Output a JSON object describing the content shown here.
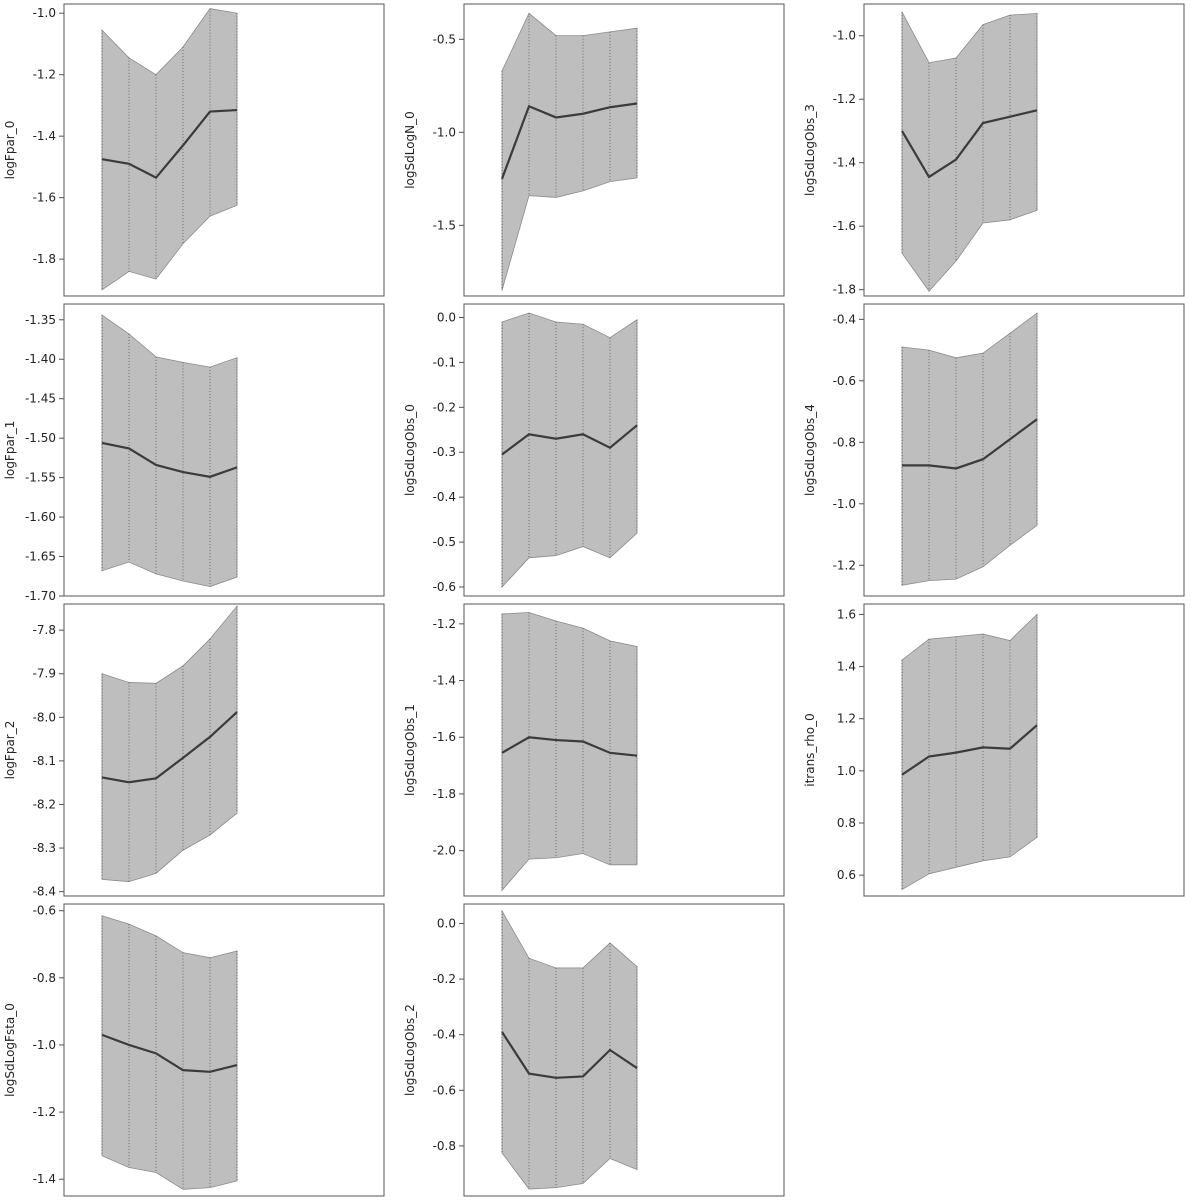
{
  "colors": {
    "band": "#bebebe",
    "band_edge": "#8c8c8c",
    "line": "#3b3b3b",
    "frame": "#555555",
    "vline": "#555555"
  },
  "chart_data": [
    {
      "type": "line",
      "ylabel": "logFpar_0",
      "ylim": [
        -1.92,
        -0.97
      ],
      "yticks": [
        -1.8,
        -1.6,
        -1.4,
        -1.2,
        -1.0
      ],
      "yticklabels": [
        "-1.8",
        "-1.6",
        "-1.4",
        "-1.2",
        "-1.0"
      ],
      "x": [
        1,
        2,
        3,
        4,
        5,
        6
      ],
      "mean": [
        -1.475,
        -1.49,
        -1.535,
        -1.43,
        -1.32,
        -1.315
      ],
      "lower": [
        -1.9,
        -1.84,
        -1.865,
        -1.75,
        -1.66,
        -1.625
      ],
      "upper": [
        -1.055,
        -1.145,
        -1.2,
        -1.11,
        -0.985,
        -1.0
      ]
    },
    {
      "type": "line",
      "ylabel": "logSdLogN_0",
      "ylim": [
        -1.88,
        -0.31
      ],
      "yticks": [
        -1.5,
        -1.0,
        -0.5
      ],
      "yticklabels": [
        "-1.5",
        "-1.0",
        "-0.5"
      ],
      "x": [
        1,
        2,
        3,
        4,
        5,
        6
      ],
      "mean": [
        -1.25,
        -0.86,
        -0.92,
        -0.9,
        -0.865,
        -0.845
      ],
      "lower": [
        -1.85,
        -1.34,
        -1.35,
        -1.315,
        -1.265,
        -1.245
      ],
      "upper": [
        -0.67,
        -0.36,
        -0.48,
        -0.48,
        -0.46,
        -0.44
      ]
    },
    {
      "type": "line",
      "ylabel": "logSdLogObs_3",
      "ylim": [
        -1.82,
        -0.9
      ],
      "yticks": [
        -1.8,
        -1.6,
        -1.4,
        -1.2,
        -1.0
      ],
      "yticklabels": [
        "-1.8",
        "-1.6",
        "-1.4",
        "-1.2",
        "-1.0"
      ],
      "x": [
        1,
        2,
        3,
        4,
        5,
        6
      ],
      "mean": [
        -1.3,
        -1.445,
        -1.39,
        -1.275,
        -1.255,
        -1.235
      ],
      "lower": [
        -1.685,
        -1.805,
        -1.71,
        -1.59,
        -1.58,
        -1.55
      ],
      "upper": [
        -0.925,
        -1.085,
        -1.07,
        -0.965,
        -0.935,
        -0.93
      ]
    },
    {
      "type": "line",
      "ylabel": "logFpar_1",
      "ylim": [
        -1.7,
        -1.33
      ],
      "yticks": [
        -1.7,
        -1.65,
        -1.6,
        -1.55,
        -1.5,
        -1.45,
        -1.4,
        -1.35
      ],
      "yticklabels": [
        "-1.70",
        "-1.65",
        "-1.60",
        "-1.55",
        "-1.50",
        "-1.45",
        "-1.40",
        "-1.35"
      ],
      "x": [
        1,
        2,
        3,
        4,
        5,
        6
      ],
      "mean": [
        -1.506,
        -1.513,
        -1.534,
        -1.543,
        -1.549,
        -1.537
      ],
      "lower": [
        -1.668,
        -1.657,
        -1.672,
        -1.681,
        -1.688,
        -1.676
      ],
      "upper": [
        -1.344,
        -1.368,
        -1.397,
        -1.404,
        -1.41,
        -1.398
      ]
    },
    {
      "type": "line",
      "ylabel": "logSdLogObs_0",
      "ylim": [
        -0.62,
        0.03
      ],
      "yticks": [
        -0.6,
        -0.5,
        -0.4,
        -0.3,
        -0.2,
        -0.1,
        0.0
      ],
      "yticklabels": [
        "-0.6",
        "-0.5",
        "-0.4",
        "-0.3",
        "-0.2",
        "-0.1",
        "0.0"
      ],
      "x": [
        1,
        2,
        3,
        4,
        5,
        6
      ],
      "mean": [
        -0.305,
        -0.26,
        -0.27,
        -0.26,
        -0.29,
        -0.24
      ],
      "lower": [
        -0.6,
        -0.535,
        -0.53,
        -0.51,
        -0.535,
        -0.48
      ],
      "upper": [
        -0.01,
        0.01,
        -0.01,
        -0.015,
        -0.045,
        -0.005
      ]
    },
    {
      "type": "line",
      "ylabel": "logSdLogObs_4",
      "ylim": [
        -1.3,
        -0.35
      ],
      "yticks": [
        -1.2,
        -1.0,
        -0.8,
        -0.6,
        -0.4
      ],
      "yticklabels": [
        "-1.2",
        "-1.0",
        "-0.8",
        "-0.6",
        "-0.4"
      ],
      "x": [
        1,
        2,
        3,
        4,
        5,
        6
      ],
      "mean": [
        -0.875,
        -0.875,
        -0.885,
        -0.855,
        -0.79,
        -0.725
      ],
      "lower": [
        -1.265,
        -1.25,
        -1.245,
        -1.205,
        -1.135,
        -1.07
      ],
      "upper": [
        -0.49,
        -0.5,
        -0.525,
        -0.51,
        -0.445,
        -0.38
      ]
    },
    {
      "type": "line",
      "ylabel": "logFpar_2",
      "ylim": [
        -8.41,
        -7.74
      ],
      "yticks": [
        -8.4,
        -8.3,
        -8.2,
        -8.1,
        -8.0,
        -7.9,
        -7.8
      ],
      "yticklabels": [
        "-8.4",
        "-8.3",
        "-8.2",
        "-8.1",
        "-8.0",
        "-7.9",
        "-7.8"
      ],
      "x": [
        1,
        2,
        3,
        4,
        5,
        6
      ],
      "mean": [
        -8.138,
        -8.149,
        -8.14,
        -8.093,
        -8.045,
        -7.988
      ],
      "lower": [
        -8.372,
        -8.377,
        -8.358,
        -8.305,
        -8.27,
        -8.22
      ],
      "upper": [
        -7.9,
        -7.92,
        -7.922,
        -7.882,
        -7.82,
        -7.745
      ]
    },
    {
      "type": "line",
      "ylabel": "logSdLogObs_1",
      "ylim": [
        -2.16,
        -1.13
      ],
      "yticks": [
        -2.0,
        -1.8,
        -1.6,
        -1.4,
        -1.2
      ],
      "yticklabels": [
        "-2.0",
        "-1.8",
        "-1.6",
        "-1.4",
        "-1.2"
      ],
      "x": [
        1,
        2,
        3,
        4,
        5,
        6
      ],
      "mean": [
        -1.655,
        -1.6,
        -1.61,
        -1.615,
        -1.655,
        -1.665
      ],
      "lower": [
        -2.14,
        -2.03,
        -2.025,
        -2.01,
        -2.05,
        -2.05
      ],
      "upper": [
        -1.165,
        -1.16,
        -1.19,
        -1.215,
        -1.26,
        -1.28
      ]
    },
    {
      "type": "line",
      "ylabel": "itrans_rho_0",
      "ylim": [
        0.52,
        1.64
      ],
      "yticks": [
        0.6,
        0.8,
        1.0,
        1.2,
        1.4,
        1.6
      ],
      "yticklabels": [
        "0.6",
        "0.8",
        "1.0",
        "1.2",
        "1.4",
        "1.6"
      ],
      "x": [
        1,
        2,
        3,
        4,
        5,
        6
      ],
      "mean": [
        0.985,
        1.055,
        1.07,
        1.09,
        1.085,
        1.175
      ],
      "lower": [
        0.545,
        0.605,
        0.63,
        0.655,
        0.67,
        0.745
      ],
      "upper": [
        1.425,
        1.505,
        1.515,
        1.525,
        1.5,
        1.6
      ]
    },
    {
      "type": "line",
      "ylabel": "logSdLogFsta_0",
      "ylim": [
        -1.45,
        -0.58
      ],
      "yticks": [
        -1.4,
        -1.2,
        -1.0,
        -0.8,
        -0.6
      ],
      "yticklabels": [
        "-1.4",
        "-1.2",
        "-1.0",
        "-0.8",
        "-0.6"
      ],
      "x": [
        1,
        2,
        3,
        4,
        5,
        6
      ],
      "mean": [
        -0.97,
        -1.0,
        -1.025,
        -1.075,
        -1.08,
        -1.06
      ],
      "lower": [
        -1.33,
        -1.365,
        -1.38,
        -1.43,
        -1.425,
        -1.405
      ],
      "upper": [
        -0.615,
        -0.64,
        -0.675,
        -0.725,
        -0.74,
        -0.72
      ]
    },
    {
      "type": "line",
      "ylabel": "logSdLogObs_2",
      "ylim": [
        -0.98,
        0.07
      ],
      "yticks": [
        -0.8,
        -0.6,
        -0.4,
        -0.2,
        0.0
      ],
      "yticklabels": [
        "-0.8",
        "-0.6",
        "-0.4",
        "-0.2",
        "0.0"
      ],
      "x": [
        1,
        2,
        3,
        4,
        5,
        6
      ],
      "mean": [
        -0.39,
        -0.54,
        -0.555,
        -0.55,
        -0.455,
        -0.52
      ],
      "lower": [
        -0.825,
        -0.955,
        -0.95,
        -0.935,
        -0.845,
        -0.885
      ],
      "upper": [
        0.045,
        -0.125,
        -0.16,
        -0.16,
        -0.07,
        -0.155
      ]
    }
  ]
}
